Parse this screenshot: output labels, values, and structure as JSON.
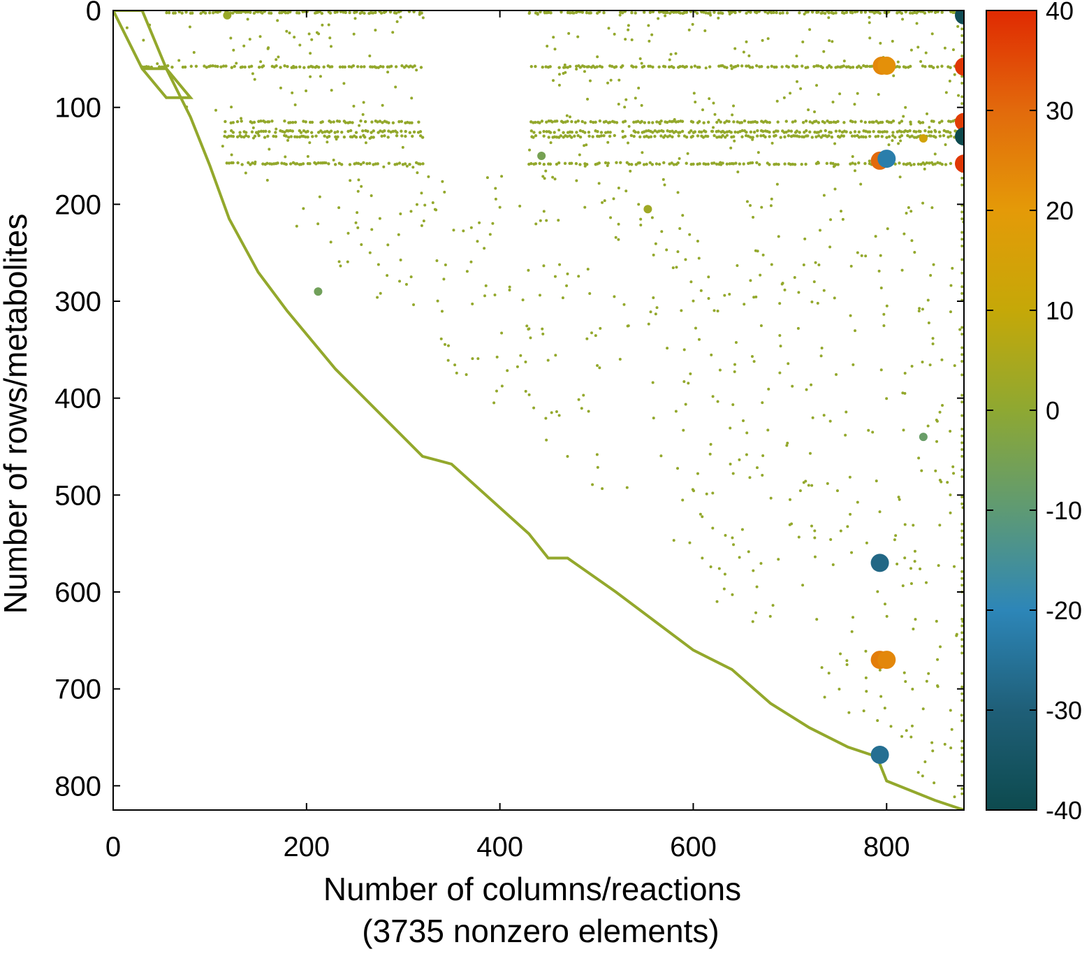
{
  "chart_data": {
    "type": "scatter",
    "title": "",
    "xlabel": "Number of columns/reactions",
    "xlabel_note": "(3735 nonzero elements)",
    "ylabel": "Number of rows/metabolites",
    "xlim": [
      0,
      880
    ],
    "ylim": [
      825,
      0
    ],
    "y_inverted": true,
    "x_ticks": [
      0,
      200,
      400,
      600,
      800
    ],
    "y_ticks": [
      0,
      100,
      200,
      300,
      400,
      500,
      600,
      700,
      800
    ],
    "x_tick_labels": [
      "0",
      "200",
      "400",
      "600",
      "800"
    ],
    "y_tick_labels": [
      "0",
      "100",
      "200",
      "300",
      "400",
      "500",
      "600",
      "700",
      "800"
    ],
    "grid": false,
    "legend": "none",
    "colorbar": {
      "range": [
        -40,
        40
      ],
      "ticks": [
        40,
        30,
        20,
        10,
        0,
        -10,
        -20,
        -30,
        -40
      ],
      "tick_labels": [
        "40",
        "30",
        "20",
        "10",
        "0",
        "-10",
        "-20",
        "-30",
        "-40"
      ],
      "stops": [
        "#0d4a4e",
        "#1f5f78",
        "#2d86b8",
        "#5e9a74",
        "#8ea832",
        "#c5a808",
        "#e49a08",
        "#e26a0c",
        "#e02a02"
      ]
    },
    "dominant_value": 0,
    "dominant_color": "#93a82c",
    "diagonal_path": [
      [
        0,
        0
      ],
      [
        30,
        60
      ],
      [
        55,
        60
      ],
      [
        80,
        110
      ],
      [
        100,
        160
      ],
      [
        120,
        215
      ],
      [
        150,
        270
      ],
      [
        180,
        310
      ],
      [
        230,
        370
      ],
      [
        280,
        420
      ],
      [
        320,
        460
      ],
      [
        350,
        468
      ],
      [
        430,
        540
      ],
      [
        450,
        565
      ],
      [
        470,
        565
      ],
      [
        520,
        600
      ],
      [
        560,
        630
      ],
      [
        600,
        660
      ],
      [
        640,
        680
      ],
      [
        680,
        715
      ],
      [
        720,
        740
      ],
      [
        760,
        760
      ],
      [
        790,
        770
      ],
      [
        800,
        795
      ],
      [
        850,
        815
      ],
      [
        880,
        825
      ]
    ],
    "horizontal_bands": [
      {
        "row": 2,
        "segments": [
          [
            55,
            320
          ],
          [
            430,
            880
          ]
        ]
      },
      {
        "row": 58,
        "segments": [
          [
            30,
            320
          ],
          [
            430,
            880
          ]
        ]
      },
      {
        "row": 115,
        "segments": [
          [
            115,
            320
          ],
          [
            430,
            880
          ]
        ]
      },
      {
        "row": 125,
        "segments": [
          [
            115,
            320
          ],
          [
            430,
            880
          ]
        ]
      },
      {
        "row": 130,
        "segments": [
          [
            115,
            320
          ],
          [
            430,
            880
          ]
        ]
      },
      {
        "row": 158,
        "segments": [
          [
            115,
            320
          ],
          [
            430,
            880
          ]
        ]
      }
    ],
    "large_points": [
      {
        "x": 880,
        "y": 5,
        "value": -38
      },
      {
        "x": 880,
        "y": 58,
        "value": 38
      },
      {
        "x": 880,
        "y": 115,
        "value": 37
      },
      {
        "x": 880,
        "y": 130,
        "value": -40
      },
      {
        "x": 880,
        "y": 158,
        "value": 38
      },
      {
        "x": 795,
        "y": 57,
        "value": 24
      },
      {
        "x": 800,
        "y": 57,
        "value": 22
      },
      {
        "x": 793,
        "y": 155,
        "value": 30
      },
      {
        "x": 800,
        "y": 153,
        "value": -22
      },
      {
        "x": 793,
        "y": 570,
        "value": -28
      },
      {
        "x": 793,
        "y": 670,
        "value": 26
      },
      {
        "x": 800,
        "y": 670,
        "value": 24
      },
      {
        "x": 793,
        "y": 768,
        "value": -26
      }
    ],
    "medium_points": [
      {
        "x": 838,
        "y": 440,
        "value": -8
      },
      {
        "x": 212,
        "y": 290,
        "value": -6
      },
      {
        "x": 443,
        "y": 150,
        "value": -5
      },
      {
        "x": 838,
        "y": 132,
        "value": 14
      },
      {
        "x": 118,
        "y": 5,
        "value": 2
      },
      {
        "x": 553,
        "y": 205,
        "value": 3
      }
    ]
  }
}
